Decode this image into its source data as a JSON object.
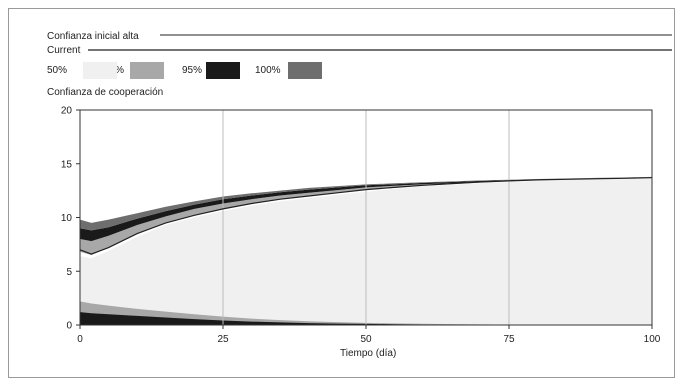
{
  "chart_data": {
    "type": "area",
    "title": "Confianza inicial alta",
    "subtitle": "Current",
    "ylabel": "Confianza de cooperación",
    "xlabel": "Tiempo (día)",
    "xlim": [
      0,
      100
    ],
    "ylim": [
      0,
      20
    ],
    "xticks": [
      "0",
      "25",
      "50",
      "75",
      "100"
    ],
    "yticks": [
      "0",
      "5",
      "10",
      "15",
      "20"
    ],
    "grid": true,
    "legend": [
      {
        "label": "50%",
        "color": "#f0f0f0"
      },
      {
        "label": "75%",
        "color": "#a8a8a8"
      },
      {
        "label": "95%",
        "color": "#1a1a1a"
      },
      {
        "label": "100%",
        "color": "#6e6e6e"
      }
    ],
    "x": [
      0,
      2,
      5,
      10,
      15,
      20,
      25,
      30,
      35,
      40,
      45,
      50,
      55,
      60,
      65,
      70,
      75,
      80,
      85,
      90,
      95,
      100
    ],
    "series": [
      {
        "name": "Current",
        "values": [
          7.0,
          6.6,
          7.2,
          8.5,
          9.5,
          10.2,
          10.8,
          11.3,
          11.7,
          12.0,
          12.3,
          12.6,
          12.8,
          13.0,
          13.15,
          13.3,
          13.4,
          13.5,
          13.55,
          13.6,
          13.65,
          13.7
        ]
      }
    ],
    "bands": {
      "upper": {
        "q0": [
          6.4,
          6.2,
          6.9,
          8.2,
          9.3,
          10.0,
          10.6,
          11.1,
          11.5,
          11.8,
          12.1,
          12.4,
          12.65,
          12.9,
          13.05,
          13.2,
          13.3,
          13.4,
          13.5,
          13.55,
          13.6,
          13.65
        ],
        "q25": [
          6.8,
          6.5,
          7.2,
          8.5,
          9.5,
          10.2,
          10.75,
          11.25,
          11.65,
          11.95,
          12.25,
          12.55,
          12.75,
          12.95,
          13.1,
          13.25,
          13.35,
          13.45,
          13.52,
          13.58,
          13.63,
          13.68
        ],
        "q75": [
          8.0,
          7.8,
          8.3,
          9.3,
          10.1,
          10.8,
          11.3,
          11.7,
          12.05,
          12.3,
          12.55,
          12.8,
          12.95,
          13.1,
          13.2,
          13.32,
          13.42,
          13.5,
          13.57,
          13.62,
          13.67,
          13.72
        ],
        "q95": [
          9.0,
          8.8,
          9.1,
          9.9,
          10.6,
          11.2,
          11.7,
          12.05,
          12.35,
          12.6,
          12.8,
          13.0,
          13.1,
          13.22,
          13.3,
          13.4,
          13.48,
          13.55,
          13.6,
          13.65,
          13.7,
          13.75
        ],
        "q100": [
          9.8,
          9.5,
          9.8,
          10.4,
          11.0,
          11.5,
          11.95,
          12.25,
          12.5,
          12.75,
          12.92,
          13.08,
          13.18,
          13.28,
          13.36,
          13.45,
          13.52,
          13.58,
          13.63,
          13.68,
          13.72,
          13.78
        ]
      },
      "lower": {
        "q50": [
          1.2,
          1.1,
          1.0,
          0.85,
          0.7,
          0.55,
          0.42,
          0.32,
          0.24,
          0.18,
          0.13,
          0.1,
          0.07,
          0.05,
          0.04,
          0.03,
          0.02,
          0.02,
          0.01,
          0.01,
          0.01,
          0.0
        ],
        "q100": [
          2.2,
          2.0,
          1.8,
          1.5,
          1.25,
          1.0,
          0.78,
          0.6,
          0.46,
          0.35,
          0.27,
          0.2,
          0.15,
          0.11,
          0.08,
          0.06,
          0.04,
          0.03,
          0.02,
          0.02,
          0.01,
          0.01
        ]
      }
    }
  }
}
